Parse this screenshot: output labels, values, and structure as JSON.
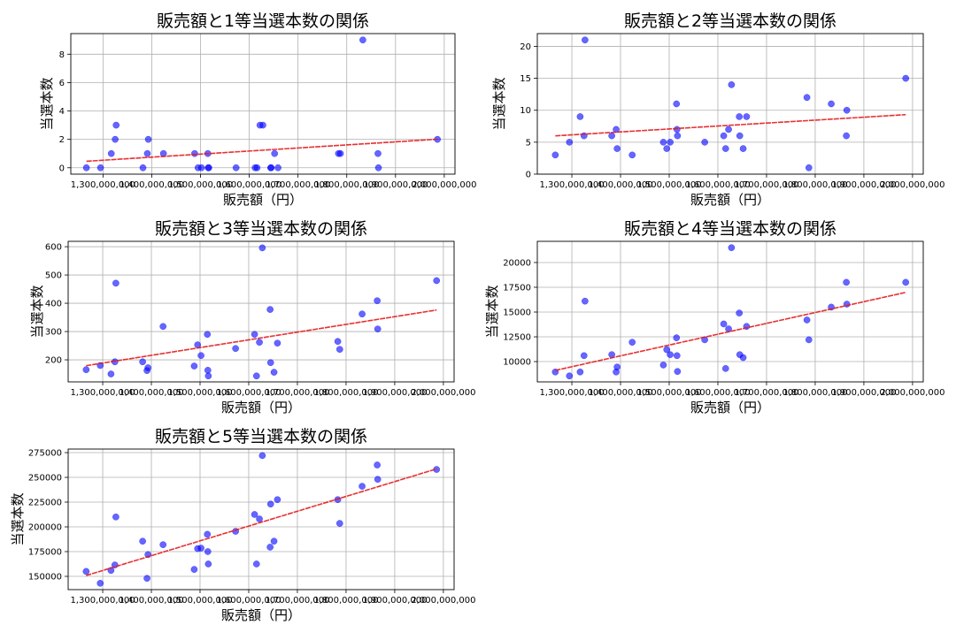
{
  "chart_data": [
    {
      "type": "scatter",
      "title": "販売額と1等当選本数の関係",
      "xlabel": "販売額（円）",
      "ylabel": "当選本数",
      "xlim": [
        1234000000,
        2022000000
      ],
      "ylim": [
        -0.45,
        9.45
      ],
      "xticks": [
        1300000000,
        1400000000,
        1500000000,
        1600000000,
        1700000000,
        1800000000,
        1900000000,
        2000000000
      ],
      "xtick_labels": [
        "1,300,000,000",
        "1,400,000,000",
        "1,500,000,000",
        "1,600,000,000",
        "1,700,000,000",
        "1,800,000,000",
        "1,900,000,000",
        "2,000,000,000"
      ],
      "yticks": [
        0,
        2,
        4,
        6,
        8
      ],
      "grid": true,
      "trendline": "linear",
      "colors": {
        "points": "#0000ff",
        "trendline": "#e41a1c"
      },
      "x": [
        1266000000,
        1295000000,
        1317000000,
        1325000000,
        1327000000,
        1382000000,
        1391000000,
        1393000000,
        1424000000,
        1488000000,
        1495000000,
        1502000000,
        1515000000,
        1516000000,
        1517000000,
        1573000000,
        1612000000,
        1616000000,
        1622000000,
        1628000000,
        1644000000,
        1645000000,
        1652000000,
        1659000000,
        1783000000,
        1787000000,
        1833000000,
        1864000000,
        1865000000,
        1986000000
      ],
      "y": [
        0,
        0,
        1,
        2,
        3,
        0,
        1,
        2,
        1,
        1,
        0,
        0,
        1,
        0,
        0,
        0,
        0,
        0,
        3,
        3,
        0,
        0,
        1,
        0,
        1,
        1,
        9,
        1,
        0,
        2
      ]
    },
    {
      "type": "scatter",
      "title": "販売額と2等当選本数の関係",
      "xlabel": "販売額（円）",
      "ylabel": "当選本数",
      "xlim": [
        1229000000,
        2022000000
      ],
      "ylim": [
        0,
        22
      ],
      "xticks": [
        1300000000,
        1400000000,
        1500000000,
        1600000000,
        1700000000,
        1800000000,
        1900000000,
        2000000000
      ],
      "xtick_labels": [
        "1,300,000,000",
        "1,400,000,000",
        "1,500,000,000",
        "1,600,000,000",
        "1,700,000,000",
        "1,800,000,000",
        "1,900,000,000",
        "2,000,000,000"
      ],
      "yticks": [
        0,
        5,
        10,
        15,
        20
      ],
      "grid": true,
      "trendline": "linear",
      "colors": {
        "points": "#0000ff",
        "trendline": "#e41a1c"
      },
      "x": [
        1266000000,
        1295000000,
        1317000000,
        1325000000,
        1327000000,
        1382000000,
        1391000000,
        1393000000,
        1424000000,
        1488000000,
        1495000000,
        1502000000,
        1515000000,
        1516000000,
        1517000000,
        1573000000,
        1612000000,
        1616000000,
        1622000000,
        1628000000,
        1644000000,
        1645000000,
        1652000000,
        1659000000,
        1783000000,
        1787000000,
        1833000000,
        1864000000,
        1865000000,
        1986000000
      ],
      "y": [
        3,
        5,
        9,
        6,
        21,
        6,
        7,
        4,
        3,
        5,
        4,
        5,
        11,
        7,
        6,
        5,
        6,
        4,
        7,
        14,
        9,
        6,
        4,
        9,
        12,
        1,
        11,
        6,
        10,
        15
      ]
    },
    {
      "type": "scatter",
      "title": "販売額と3等当選本数の関係",
      "xlabel": "販売額（円）",
      "ylabel": "当選本数",
      "xlim": [
        1229000000,
        2022000000
      ],
      "ylim": [
        122,
        619
      ],
      "xticks": [
        1300000000,
        1400000000,
        1500000000,
        1600000000,
        1700000000,
        1800000000,
        1900000000,
        2000000000
      ],
      "xtick_labels": [
        "1,300,000,000",
        "1,400,000,000",
        "1,500,000,000",
        "1,600,000,000",
        "1,700,000,000",
        "1,800,000,000",
        "1,900,000,000",
        "2,000,000,000"
      ],
      "yticks": [
        200,
        300,
        400,
        500,
        600
      ],
      "grid": true,
      "trendline": "linear",
      "colors": {
        "points": "#0000ff",
        "trendline": "#e41a1c"
      },
      "x": [
        1266000000,
        1295000000,
        1317000000,
        1325000000,
        1327000000,
        1382000000,
        1391000000,
        1393000000,
        1424000000,
        1488000000,
        1495000000,
        1502000000,
        1515000000,
        1516000000,
        1517000000,
        1573000000,
        1612000000,
        1616000000,
        1622000000,
        1628000000,
        1644000000,
        1645000000,
        1652000000,
        1659000000,
        1783000000,
        1787000000,
        1833000000,
        1864000000,
        1865000000,
        1986000000
      ],
      "y": [
        165,
        180,
        150,
        193,
        471,
        193,
        162,
        172,
        318,
        178,
        253,
        215,
        290,
        163,
        143,
        240,
        290,
        143,
        262,
        596,
        378,
        190,
        156,
        259,
        265,
        237,
        362,
        409,
        309,
        480
      ]
    },
    {
      "type": "scatter",
      "title": "販売額と4等当選本数の関係",
      "xlabel": "販売額（円）",
      "ylabel": "当選本数",
      "xlim": [
        1229000000,
        2022000000
      ],
      "ylim": [
        7950,
        22140
      ],
      "xticks": [
        1300000000,
        1400000000,
        1500000000,
        1600000000,
        1700000000,
        1800000000,
        1900000000,
        2000000000
      ],
      "xtick_labels": [
        "1,300,000,000",
        "1,400,000,000",
        "1,500,000,000",
        "1,600,000,000",
        "1,700,000,000",
        "1,800,000,000",
        "1,900,000,000",
        "2,000,000,000"
      ],
      "yticks": [
        10000,
        12500,
        15000,
        17500,
        20000
      ],
      "grid": true,
      "trendline": "linear",
      "colors": {
        "points": "#0000ff",
        "trendline": "#e41a1c"
      },
      "x": [
        1266000000,
        1295000000,
        1317000000,
        1325000000,
        1327000000,
        1382000000,
        1391000000,
        1393000000,
        1424000000,
        1488000000,
        1495000000,
        1502000000,
        1515000000,
        1516000000,
        1517000000,
        1573000000,
        1612000000,
        1616000000,
        1622000000,
        1628000000,
        1644000000,
        1645000000,
        1652000000,
        1659000000,
        1783000000,
        1787000000,
        1833000000,
        1864000000,
        1865000000,
        1986000000
      ],
      "y": [
        8950,
        8550,
        8950,
        10600,
        16100,
        10700,
        8950,
        9450,
        11950,
        9650,
        11200,
        10700,
        12400,
        10600,
        9000,
        12200,
        13800,
        9300,
        13300,
        21500,
        14900,
        10700,
        10400,
        13550,
        14200,
        12200,
        15500,
        18000,
        15800,
        18000
      ]
    },
    {
      "type": "scatter",
      "title": "販売額と5等当選本数の関係",
      "xlabel": "販売額（円）",
      "ylabel": "当選本数",
      "xlim": [
        1229000000,
        2022000000
      ],
      "ylim": [
        136600,
        278600
      ],
      "xticks": [
        1300000000,
        1400000000,
        1500000000,
        1600000000,
        1700000000,
        1800000000,
        1900000000,
        2000000000
      ],
      "xtick_labels": [
        "1,300,000,000",
        "1,400,000,000",
        "1,500,000,000",
        "1,600,000,000",
        "1,700,000,000",
        "1,800,000,000",
        "1,900,000,000",
        "2,000,000,000"
      ],
      "yticks": [
        150000,
        175000,
        200000,
        225000,
        250000,
        275000
      ],
      "grid": true,
      "trendline": "linear",
      "colors": {
        "points": "#0000ff",
        "trendline": "#e41a1c"
      },
      "x": [
        1266000000,
        1295000000,
        1317000000,
        1325000000,
        1327000000,
        1382000000,
        1391000000,
        1393000000,
        1424000000,
        1488000000,
        1495000000,
        1502000000,
        1515000000,
        1516000000,
        1517000000,
        1573000000,
        1612000000,
        1616000000,
        1622000000,
        1628000000,
        1644000000,
        1645000000,
        1652000000,
        1659000000,
        1783000000,
        1787000000,
        1833000000,
        1864000000,
        1865000000,
        1986000000
      ],
      "y": [
        155000,
        143000,
        156000,
        161500,
        210000,
        185500,
        148000,
        172000,
        182000,
        157000,
        178000,
        178500,
        192500,
        175000,
        162500,
        195500,
        212500,
        162500,
        208000,
        272000,
        179500,
        223000,
        185500,
        227500,
        227500,
        203500,
        241000,
        262500,
        248000,
        258000
      ]
    }
  ]
}
